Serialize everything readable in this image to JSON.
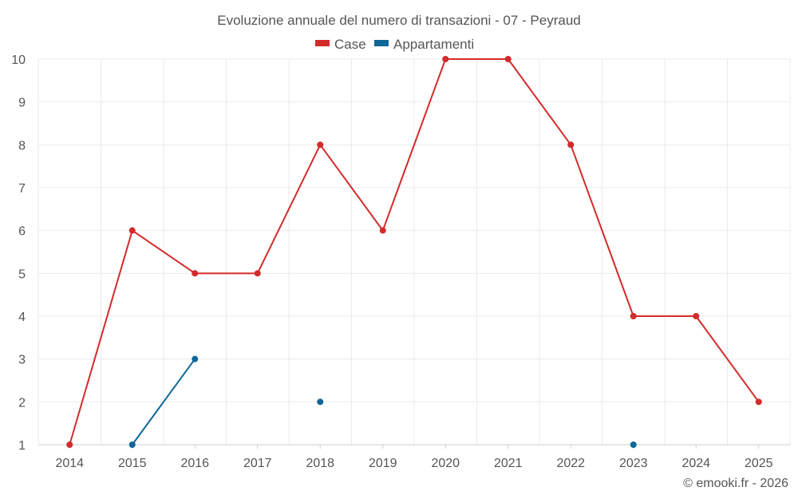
{
  "chart_data": {
    "type": "line",
    "title": "Evoluzione annuale del numero di transazioni - 07 - Peyraud",
    "categories": [
      "2014",
      "2015",
      "2016",
      "2017",
      "2018",
      "2019",
      "2020",
      "2021",
      "2022",
      "2023",
      "2024",
      "2025"
    ],
    "series": [
      {
        "name": "Case",
        "color": "#d42a2a",
        "values": [
          1,
          6,
          5,
          5,
          8,
          6,
          10,
          10,
          8,
          4,
          4,
          2
        ]
      },
      {
        "name": "Appartamenti",
        "color": "#0e6699",
        "values": [
          null,
          1,
          3,
          null,
          2,
          null,
          null,
          null,
          null,
          1,
          null,
          null
        ]
      }
    ],
    "ylim": [
      1,
      10
    ],
    "yticks": [
      "1",
      "2",
      "3",
      "4",
      "5",
      "6",
      "7",
      "8",
      "9",
      "10"
    ],
    "grid": true,
    "legend": "top-center"
  },
  "credit": "© emooki.fr - 2026"
}
